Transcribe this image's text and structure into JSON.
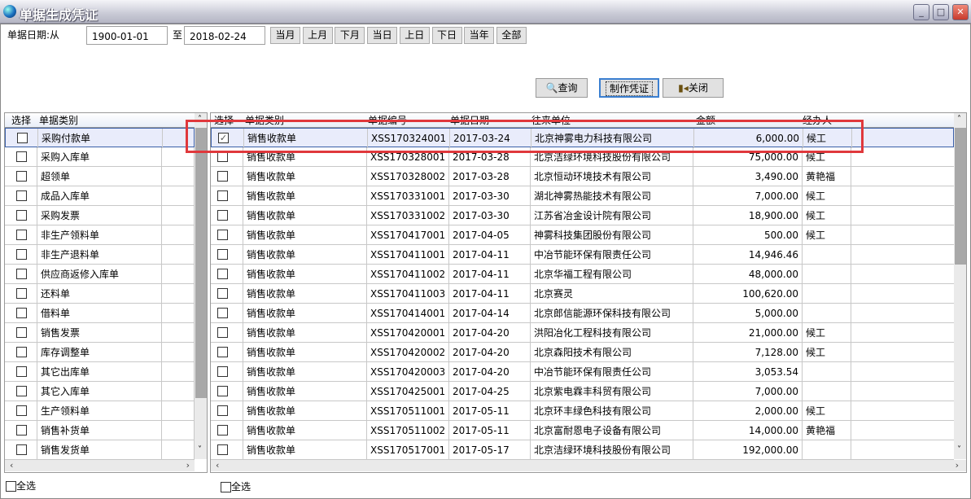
{
  "window": {
    "title": "单据生成凭证",
    "minimize": "_",
    "maximize": "□",
    "close": "✕"
  },
  "filter": {
    "date_label": "单据日期:从",
    "date_from": "1900-01-01",
    "to_label": "至",
    "date_to": "2018-02-24",
    "period_buttons": [
      "当月",
      "上月",
      "下月",
      "当日",
      "上日",
      "下日",
      "当年",
      "全部"
    ]
  },
  "actions": {
    "query": "查询",
    "make_voucher": "制作凭证",
    "close": "关闭"
  },
  "left_grid": {
    "headers": {
      "select": "选择",
      "type": "单据类别"
    },
    "items": [
      {
        "label": "采购付款单",
        "checked": false
      },
      {
        "label": "采购入库单",
        "checked": false
      },
      {
        "label": "超领单",
        "checked": false
      },
      {
        "label": "成品入库单",
        "checked": false
      },
      {
        "label": "采购发票",
        "checked": false
      },
      {
        "label": "非生产领料单",
        "checked": false
      },
      {
        "label": "非生产退料单",
        "checked": false
      },
      {
        "label": "供应商返修入库单",
        "checked": false
      },
      {
        "label": "还料单",
        "checked": false
      },
      {
        "label": "借料单",
        "checked": false
      },
      {
        "label": "销售发票",
        "checked": false
      },
      {
        "label": "库存调整单",
        "checked": false
      },
      {
        "label": "其它出库单",
        "checked": false
      },
      {
        "label": "其它入库单",
        "checked": false
      },
      {
        "label": "生产领料单",
        "checked": false
      },
      {
        "label": "销售补货单",
        "checked": false
      },
      {
        "label": "销售发货单",
        "checked": false
      }
    ],
    "select_all": "全选"
  },
  "right_grid": {
    "headers": {
      "select": "选择",
      "type": "单据类别",
      "number": "单据编号",
      "date": "单据日期",
      "partner": "往来单位",
      "amount": "金额",
      "handler": "经办人"
    },
    "rows": [
      {
        "checked": true,
        "type": "销售收款单",
        "number": "XSS170324001",
        "date": "2017-03-24",
        "partner": "北京神雾电力科技有限公司",
        "amount": "6,000.00",
        "handler": "候工"
      },
      {
        "checked": false,
        "type": "销售收款单",
        "number": "XSS170328001",
        "date": "2017-03-28",
        "partner": "北京洁绿环境科技股份有限公司",
        "amount": "75,000.00",
        "handler": "候工"
      },
      {
        "checked": false,
        "type": "销售收款单",
        "number": "XSS170328002",
        "date": "2017-03-28",
        "partner": "北京恒动环境技术有限公司",
        "amount": "3,490.00",
        "handler": "黄艳福"
      },
      {
        "checked": false,
        "type": "销售收款单",
        "number": "XSS170331001",
        "date": "2017-03-30",
        "partner": "湖北神雾热能技术有限公司",
        "amount": "7,000.00",
        "handler": "候工"
      },
      {
        "checked": false,
        "type": "销售收款单",
        "number": "XSS170331002",
        "date": "2017-03-30",
        "partner": "江苏省冶金设计院有限公司",
        "amount": "18,900.00",
        "handler": "候工"
      },
      {
        "checked": false,
        "type": "销售收款单",
        "number": "XSS170417001",
        "date": "2017-04-05",
        "partner": "神雾科技集团股份有限公司",
        "amount": "500.00",
        "handler": "候工"
      },
      {
        "checked": false,
        "type": "销售收款单",
        "number": "XSS170411001",
        "date": "2017-04-11",
        "partner": "中冶节能环保有限责任公司",
        "amount": "14,946.46",
        "handler": ""
      },
      {
        "checked": false,
        "type": "销售收款单",
        "number": "XSS170411002",
        "date": "2017-04-11",
        "partner": "北京华福工程有限公司",
        "amount": "48,000.00",
        "handler": ""
      },
      {
        "checked": false,
        "type": "销售收款单",
        "number": "XSS170411003",
        "date": "2017-04-11",
        "partner": "北京赛灵",
        "amount": "100,620.00",
        "handler": ""
      },
      {
        "checked": false,
        "type": "销售收款单",
        "number": "XSS170414001",
        "date": "2017-04-14",
        "partner": "北京郎信能源环保科技有限公司",
        "amount": "5,000.00",
        "handler": ""
      },
      {
        "checked": false,
        "type": "销售收款单",
        "number": "XSS170420001",
        "date": "2017-04-20",
        "partner": "洪阳冶化工程科技有限公司",
        "amount": "21,000.00",
        "handler": "候工"
      },
      {
        "checked": false,
        "type": "销售收款单",
        "number": "XSS170420002",
        "date": "2017-04-20",
        "partner": "北京森阳技术有限公司",
        "amount": "7,128.00",
        "handler": "候工"
      },
      {
        "checked": false,
        "type": "销售收款单",
        "number": "XSS170420003",
        "date": "2017-04-20",
        "partner": "中冶节能环保有限责任公司",
        "amount": "3,053.54",
        "handler": ""
      },
      {
        "checked": false,
        "type": "销售收款单",
        "number": "XSS170425001",
        "date": "2017-04-25",
        "partner": "北京紫电霖丰科贸有限公司",
        "amount": "7,000.00",
        "handler": ""
      },
      {
        "checked": false,
        "type": "销售收款单",
        "number": "XSS170511001",
        "date": "2017-05-11",
        "partner": "北京环丰绿色科技有限公司",
        "amount": "2,000.00",
        "handler": "候工"
      },
      {
        "checked": false,
        "type": "销售收款单",
        "number": "XSS170511002",
        "date": "2017-05-11",
        "partner": "北京富耐恩电子设备有限公司",
        "amount": "14,000.00",
        "handler": "黄艳福"
      },
      {
        "checked": false,
        "type": "销售收款单",
        "number": "XSS170517001",
        "date": "2017-05-17",
        "partner": "北京洁绿环境科技股份有限公司",
        "amount": "192,000.00",
        "handler": ""
      }
    ],
    "select_all": "全选"
  },
  "highlight_color": "#e0383c"
}
